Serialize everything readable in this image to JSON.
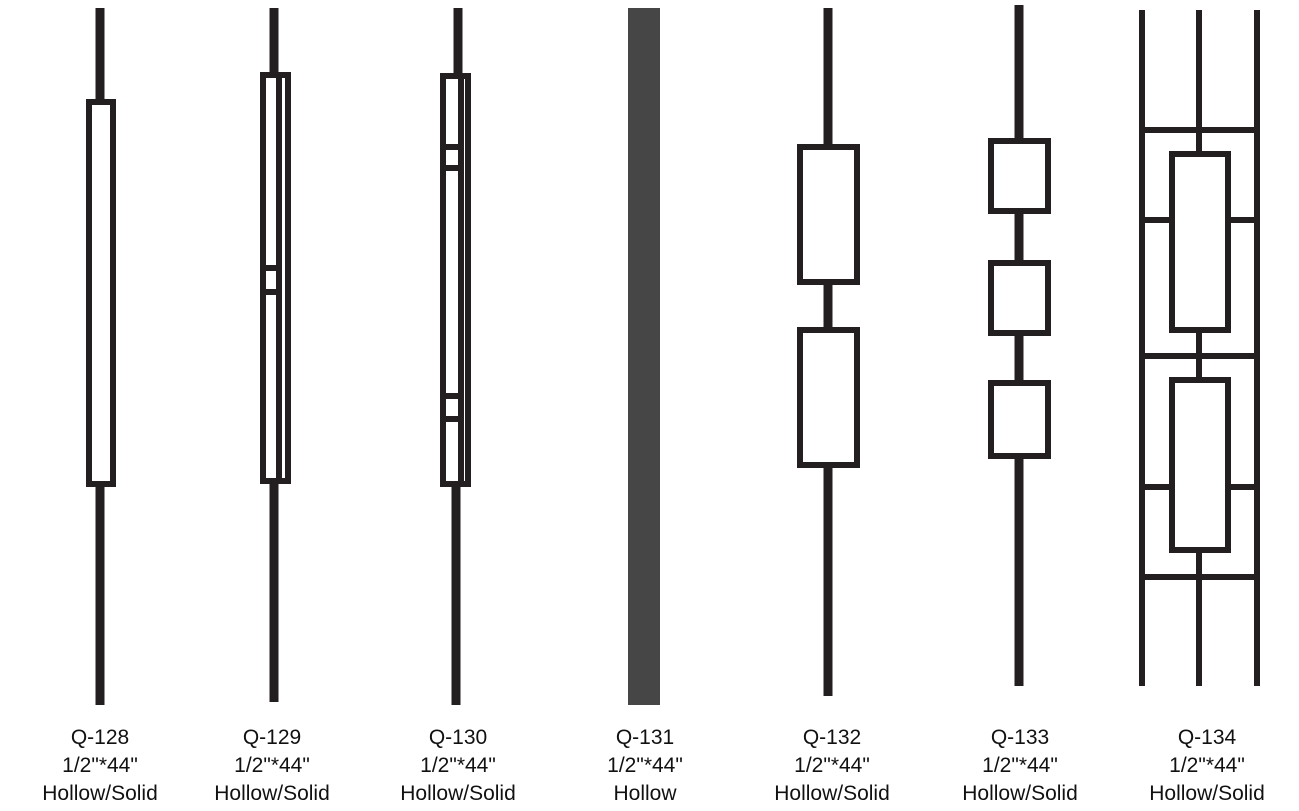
{
  "products": [
    {
      "code": "Q-128",
      "size": "1/2\"*44\"",
      "type": "Hollow/Solid"
    },
    {
      "code": "Q-129",
      "size": "1/2\"*44\"",
      "type": "Hollow/Solid"
    },
    {
      "code": "Q-130",
      "size": "1/2\"*44\"",
      "type": "Hollow/Solid"
    },
    {
      "code": "Q-131",
      "size": "1/2\"*44\"",
      "type": "Hollow"
    },
    {
      "code": "Q-132",
      "size": "1/2\"*44\"",
      "type": "Hollow/Solid"
    },
    {
      "code": "Q-133",
      "size": "1/2\"*44\"",
      "type": "Hollow/Solid"
    },
    {
      "code": "Q-134",
      "size": "1/2\"*44\"",
      "type": "Hollow/Solid"
    }
  ]
}
